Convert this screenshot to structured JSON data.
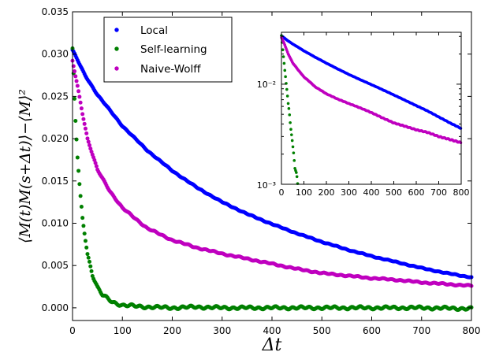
{
  "chart_data": [
    {
      "type": "scatter",
      "title": "",
      "xlabel": "Δt",
      "ylabel": "⟨M(t)M(s+Δt)⟩−⟨M⟩²",
      "xlim": [
        0,
        800
      ],
      "ylim": [
        -0.0015,
        0.035
      ],
      "x_ticks": [
        "0",
        "100",
        "200",
        "300",
        "400",
        "500",
        "600",
        "700",
        "800"
      ],
      "y_ticks": [
        "0.000",
        "0.005",
        "0.010",
        "0.015",
        "0.020",
        "0.025",
        "0.030",
        "0.035"
      ],
      "legend_position": "top-left",
      "grid": false,
      "series": [
        {
          "name": "Local",
          "color": "#0000ff",
          "x": [
            0,
            25,
            50,
            100,
            150,
            200,
            250,
            300,
            350,
            400,
            450,
            500,
            550,
            600,
            650,
            700,
            750,
            800
          ],
          "y": [
            0.0305,
            0.0275,
            0.0252,
            0.0215,
            0.0186,
            0.0162,
            0.0142,
            0.0125,
            0.0111,
            0.0099,
            0.0088,
            0.0078,
            0.0069,
            0.0061,
            0.0054,
            0.0047,
            0.0041,
            0.0036
          ]
        },
        {
          "name": "Self-learning",
          "color": "#008000",
          "x": [
            0,
            5,
            10,
            15,
            20,
            30,
            40,
            50,
            60,
            80,
            100,
            150,
            200,
            250,
            300,
            400,
            500,
            600,
            700,
            800
          ],
          "y": [
            0.0305,
            0.0232,
            0.0178,
            0.0137,
            0.0106,
            0.0064,
            0.0039,
            0.0024,
            0.0015,
            0.0007,
            0.0003,
            0.0001,
            0.0,
            0.0001,
            0.0,
            0.0,
            0.0,
            0.0,
            0.0,
            -0.0001
          ]
        },
        {
          "name": "Naive-Wolff",
          "color": "#bf00bf",
          "x": [
            0,
            10,
            20,
            30,
            50,
            75,
            100,
            150,
            200,
            250,
            300,
            350,
            400,
            450,
            500,
            550,
            600,
            650,
            700,
            750,
            800
          ],
          "y": [
            0.0292,
            0.0262,
            0.023,
            0.02,
            0.0163,
            0.0138,
            0.0118,
            0.0094,
            0.008,
            0.0071,
            0.0064,
            0.0058,
            0.0052,
            0.0046,
            0.0041,
            0.0038,
            0.0035,
            0.0033,
            0.003,
            0.0028,
            0.0026
          ]
        }
      ]
    },
    {
      "type": "scatter",
      "title": "",
      "xlabel": "",
      "ylabel": "",
      "yscale": "log",
      "xlim": [
        0,
        800
      ],
      "ylim": [
        0.001,
        0.033
      ],
      "x_ticks": [
        "0",
        "100",
        "200",
        "300",
        "400",
        "500",
        "600",
        "700",
        "800"
      ],
      "y_ticks": [
        "10⁻²",
        "10⁻³"
      ],
      "series_colors": [
        "#0000ff",
        "#008000",
        "#bf00bf"
      ]
    }
  ]
}
